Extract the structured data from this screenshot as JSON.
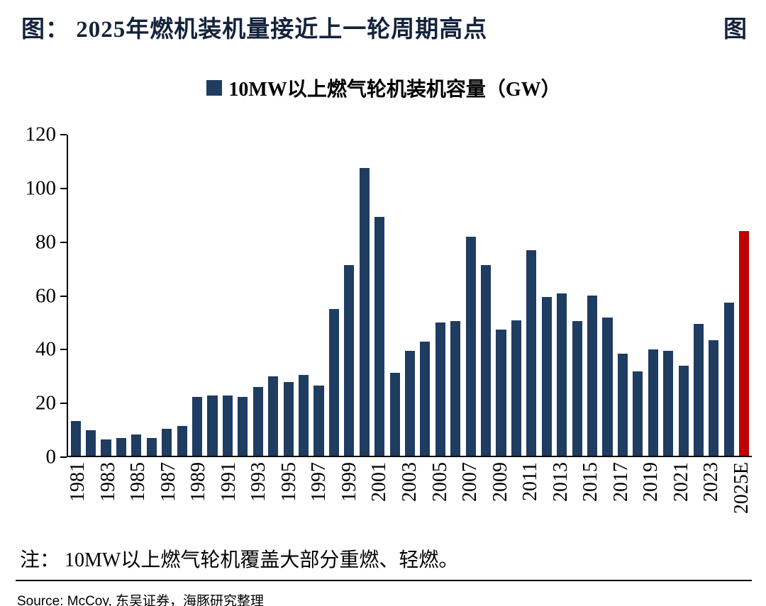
{
  "header": {
    "title": "图： 2025年燃机装机量接近上一轮周期高点",
    "corner": "图"
  },
  "legend": {
    "label": "10MW以上燃气轮机装机容量（GW）"
  },
  "chart_data": {
    "type": "bar",
    "title": "2025年燃机装机量接近上一轮周期高点",
    "series_name": "10MW以上燃气轮机装机容量（GW）",
    "categories": [
      "1981",
      "1982",
      "1983",
      "1984",
      "1985",
      "1986",
      "1987",
      "1988",
      "1989",
      "1990",
      "1991",
      "1992",
      "1993",
      "1994",
      "1995",
      "1996",
      "1997",
      "1998",
      "1999",
      "2000",
      "2001",
      "2002",
      "2003",
      "2004",
      "2005",
      "2006",
      "2007",
      "2008",
      "2009",
      "2010",
      "2011",
      "2012",
      "2013",
      "2014",
      "2015",
      "2016",
      "2017",
      "2018",
      "2019",
      "2020",
      "2021",
      "2022",
      "2023",
      "2024",
      "2025E"
    ],
    "values": [
      13,
      9.5,
      6,
      6.5,
      8,
      6.5,
      10,
      11,
      22,
      22.5,
      22.5,
      22,
      25.5,
      29.5,
      27.5,
      30,
      26,
      54.5,
      71,
      107,
      89,
      31,
      39,
      42.5,
      49.5,
      50,
      81.5,
      71,
      47,
      50.5,
      76.5,
      59,
      60.5,
      50,
      59.5,
      51.5,
      38,
      31.5,
      39.5,
      39,
      33.5,
      49,
      43,
      57,
      83.5
    ],
    "bar_color": "#1f3c61",
    "highlight_color": "#c00000",
    "highlight_index": 44,
    "ylim": [
      0,
      120
    ],
    "yticks": [
      0,
      20,
      40,
      60,
      80,
      100,
      120
    ],
    "xtick_step": 2,
    "grid": false,
    "legend_position": "top-center",
    "xlabel": "",
    "ylabel": ""
  },
  "note": "注： 10MW以上燃气轮机覆盖大部分重燃、轻燃。",
  "source": "Source: McCoy, 东吴证券，海豚研究整理"
}
